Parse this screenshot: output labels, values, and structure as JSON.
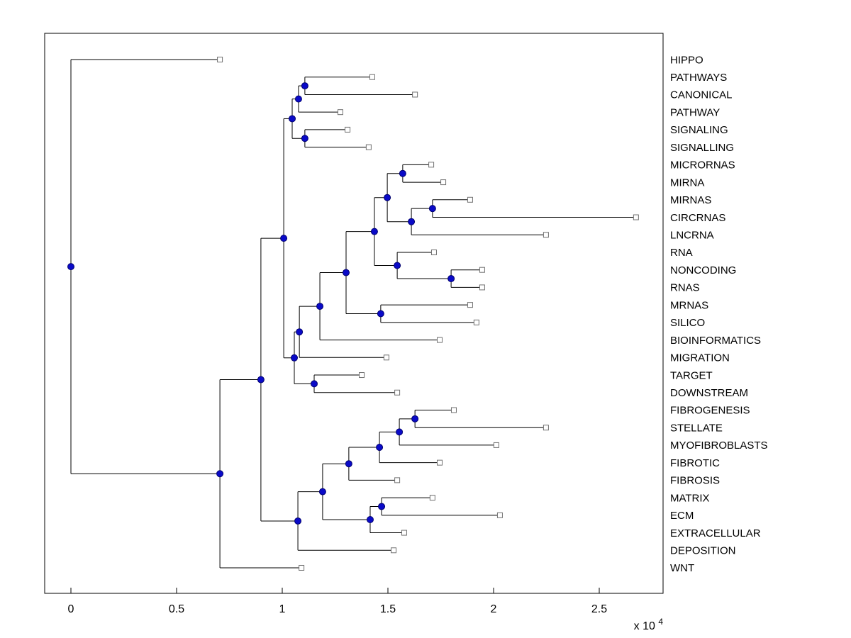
{
  "figure": {
    "background": "#ffffff",
    "kind": "MATLAB-style phylogenetic tree / dendrogram plot"
  },
  "chart_data": {
    "type": "dendrogram",
    "orientation": "horizontal-root-left",
    "title": "",
    "xlabel": "",
    "ylabel": "",
    "axis": {
      "x_ticks": [
        "0",
        "0.5",
        "1",
        "1.5",
        "2",
        "2.5"
      ],
      "x_tick_values": [
        0,
        0.5,
        1,
        1.5,
        2,
        2.5
      ],
      "scale_base": "x 10",
      "scale_exp": "4",
      "x_unit_multiplier": 10000,
      "xlim": [
        -0.124,
        2.802
      ]
    },
    "style": {
      "line_color": "#000000",
      "axis_color": "#000000",
      "node_color": "#0a0ac8",
      "node_edge_color": "#00006e",
      "leaf_marker_fill": "#ffffff",
      "leaf_marker_color": "#707070"
    },
    "leaves": [
      {
        "label": "HIPPO",
        "x": 0.705
      },
      {
        "label": "PATHWAYS",
        "x": 1.426
      },
      {
        "label": "CANONICAL",
        "x": 1.628
      },
      {
        "label": "PATHWAY",
        "x": 1.275
      },
      {
        "label": "SIGNALING",
        "x": 1.309
      },
      {
        "label": "SIGNALLING",
        "x": 1.409
      },
      {
        "label": "MICRORNAS",
        "x": 1.705
      },
      {
        "label": "MIRNA",
        "x": 1.762
      },
      {
        "label": "MIRNAS",
        "x": 1.889
      },
      {
        "label": "CIRCRNAS",
        "x": 2.674
      },
      {
        "label": "LNCRNA",
        "x": 2.248
      },
      {
        "label": "RNA",
        "x": 1.718
      },
      {
        "label": "NONCODING",
        "x": 1.946
      },
      {
        "label": "RNAS",
        "x": 1.946
      },
      {
        "label": "MRNAS",
        "x": 1.889
      },
      {
        "label": "SILICO",
        "x": 1.919
      },
      {
        "label": "BIOINFORMATICS",
        "x": 1.745
      },
      {
        "label": "MIGRATION",
        "x": 1.493
      },
      {
        "label": "TARGET",
        "x": 1.376
      },
      {
        "label": "DOWNSTREAM",
        "x": 1.544
      },
      {
        "label": "FIBROGENESIS",
        "x": 1.812
      },
      {
        "label": "STELLATE",
        "x": 2.248
      },
      {
        "label": "MYOFIBROBLASTS",
        "x": 2.013
      },
      {
        "label": "FIBROTIC",
        "x": 1.745
      },
      {
        "label": "FIBROSIS",
        "x": 1.544
      },
      {
        "label": "MATRIX",
        "x": 1.711
      },
      {
        "label": "ECM",
        "x": 2.03
      },
      {
        "label": "EXTRACELLULAR",
        "x": 1.577
      },
      {
        "label": "DEPOSITION",
        "x": 1.527
      },
      {
        "label": "WNT",
        "x": 1.091
      }
    ],
    "nodes": [
      {
        "id": "nB",
        "x": 1.107,
        "children": [
          "L1",
          "L2"
        ]
      },
      {
        "id": "nC",
        "x": 1.077,
        "children": [
          "nB",
          "L3"
        ]
      },
      {
        "id": "nE",
        "x": 1.107,
        "children": [
          "L4",
          "L5"
        ]
      },
      {
        "id": "nD",
        "x": 1.047,
        "children": [
          "nC",
          "nE"
        ]
      },
      {
        "id": "nF",
        "x": 1.57,
        "children": [
          "L6",
          "L7"
        ]
      },
      {
        "id": "nI",
        "x": 1.711,
        "children": [
          "L8",
          "L9"
        ]
      },
      {
        "id": "nH",
        "x": 1.611,
        "children": [
          "nI",
          "L10"
        ]
      },
      {
        "id": "nG",
        "x": 1.497,
        "children": [
          "nF",
          "nH"
        ]
      },
      {
        "id": "nL",
        "x": 1.799,
        "children": [
          "L12",
          "L13"
        ]
      },
      {
        "id": "nM",
        "x": 1.544,
        "children": [
          "L11",
          "nL"
        ]
      },
      {
        "id": "nK",
        "x": 1.436,
        "children": [
          "nG",
          "nM"
        ]
      },
      {
        "id": "nN",
        "x": 1.466,
        "children": [
          "L14",
          "L15"
        ]
      },
      {
        "id": "nO",
        "x": 1.302,
        "children": [
          "nK",
          "nN"
        ]
      },
      {
        "id": "nP",
        "x": 1.178,
        "children": [
          "nO",
          "L16"
        ]
      },
      {
        "id": "nQ",
        "x": 1.081,
        "children": [
          "nP",
          "L17"
        ]
      },
      {
        "id": "nS",
        "x": 1.151,
        "children": [
          "L18",
          "L19"
        ]
      },
      {
        "id": "nR",
        "x": 1.057,
        "children": [
          "nQ",
          "nS"
        ]
      },
      {
        "id": "nT",
        "x": 1.007,
        "children": [
          "nD",
          "nR"
        ]
      },
      {
        "id": "nW",
        "x": 1.628,
        "children": [
          "L20",
          "L21"
        ]
      },
      {
        "id": "nX",
        "x": 1.554,
        "children": [
          "nW",
          "L22"
        ]
      },
      {
        "id": "nY",
        "x": 1.46,
        "children": [
          "nX",
          "L23"
        ]
      },
      {
        "id": "nZ",
        "x": 1.315,
        "children": [
          "nY",
          "L24"
        ]
      },
      {
        "id": "nAA",
        "x": 1.47,
        "children": [
          "L25",
          "L26"
        ]
      },
      {
        "id": "nAB",
        "x": 1.416,
        "children": [
          "nAA",
          "L27"
        ]
      },
      {
        "id": "nV",
        "x": 1.191,
        "children": [
          "nZ",
          "nAB"
        ]
      },
      {
        "id": "nAC",
        "x": 1.074,
        "children": [
          "nV",
          "L28"
        ]
      },
      {
        "id": "nU",
        "x": 0.899,
        "children": [
          "nT",
          "nAC"
        ]
      },
      {
        "id": "nN1",
        "x": 0.705,
        "children": [
          "nU",
          "L29"
        ]
      },
      {
        "id": "root",
        "x": 0.0,
        "children": [
          "L0",
          "nN1"
        ]
      }
    ]
  }
}
